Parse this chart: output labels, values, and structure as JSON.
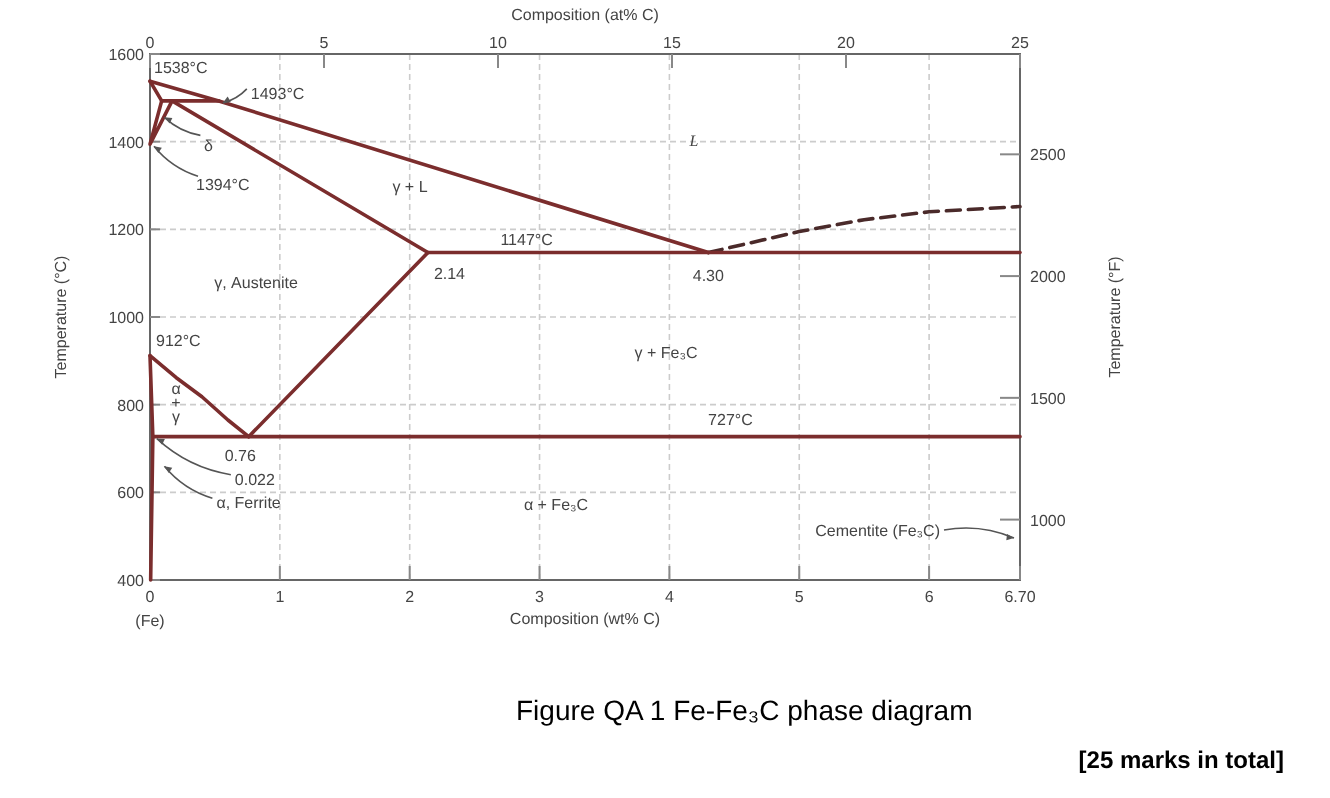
{
  "chart_data": {
    "type": "line",
    "xlabel": "Composition (wt% C)",
    "ylabel": "Temperature (°C)",
    "x2label": "Composition (at% C)",
    "y2label": "Temperature (°F)",
    "xlim": [
      0,
      6.7
    ],
    "xticks": [
      0,
      1,
      2,
      3,
      4,
      5,
      6,
      {
        "value": 6.7,
        "label": "6.70"
      }
    ],
    "ylim": [
      400,
      1600
    ],
    "yticks": [
      400,
      600,
      800,
      1000,
      1200,
      1400,
      1600
    ],
    "x2lim": [
      0,
      25
    ],
    "x2ticks": [
      0,
      5,
      10,
      15,
      20,
      25
    ],
    "y2lim": [
      752,
      2912
    ],
    "y2ticks": [
      1000,
      1500,
      2000,
      2500
    ],
    "grid": true,
    "series": [
      {
        "color": "#7b2d2d",
        "x": [
          0,
          0.53,
          4.3
        ],
        "values": [
          1538,
          1493,
          1147
        ]
      },
      {
        "color": "#4a2a2a",
        "line_style": "dashed",
        "x": [
          4.3,
          5.0,
          5.5,
          6.0,
          6.7
        ],
        "values": [
          1147,
          1195,
          1222,
          1240,
          1252
        ]
      },
      {
        "color": "#7b2d2d",
        "x": [
          2.14,
          6.7
        ],
        "values": [
          1147,
          1147
        ]
      },
      {
        "color": "#7b2d2d",
        "x": [
          0.17,
          2.14
        ],
        "values": [
          1493,
          1147
        ]
      },
      {
        "color": "#7b2d2d",
        "x": [
          0.09,
          0.53
        ],
        "values": [
          1493,
          1493
        ]
      },
      {
        "color": "#7b2d2d",
        "x": [
          0,
          0.09
        ],
        "values": [
          1538,
          1493
        ]
      },
      {
        "color": "#7b2d2d",
        "x": [
          0.09,
          0,
          0.17
        ],
        "values": [
          1493,
          1394,
          1493
        ]
      },
      {
        "color": "#7b2d2d",
        "x": [
          0,
          0.2,
          0.4,
          0.6,
          0.76
        ],
        "values": [
          912,
          862,
          818,
          765,
          727
        ]
      },
      {
        "color": "#7b2d2d",
        "x": [
          0.76,
          2.14
        ],
        "values": [
          727,
          1147
        ]
      },
      {
        "color": "#7b2d2d",
        "x": [
          0.022,
          6.7
        ],
        "values": [
          727,
          727
        ]
      },
      {
        "color": "#7b2d2d",
        "x": [
          0,
          0.022,
          0.005
        ],
        "values": [
          912,
          727,
          400
        ]
      }
    ],
    "annotations": [
      {
        "text": "1538°C",
        "x": 0,
        "y": 1538
      },
      {
        "text": "1493°C",
        "x": 0.53,
        "y": 1493
      },
      {
        "text": "δ",
        "x": 0.08,
        "y": 1460
      },
      {
        "text": "1394°C",
        "x": 0,
        "y": 1394
      },
      "γ + L",
      "L",
      {
        "text": "1147°C",
        "x": 2.9,
        "y": 1147
      },
      {
        "text": "2.14",
        "x": 2.14,
        "y": 1147
      },
      {
        "text": "4.30",
        "x": 4.3,
        "y": 1147
      },
      "γ, Austenite",
      {
        "text": "912°C",
        "x": 0,
        "y": 912
      },
      "γ + Fe₃C",
      {
        "text": "727°C",
        "x": 4.47,
        "y": 727
      },
      "α + γ",
      {
        "text": "0.76",
        "x": 0.76,
        "y": 727
      },
      {
        "text": "0.022",
        "x": 0.022,
        "y": 727
      },
      {
        "text": "α, Ferrite",
        "x": 0.08,
        "y": 664
      },
      "α + Fe₃C",
      "Cementite (Fe₃C)",
      {
        "text": "(Fe)",
        "x": 0,
        "y": 400
      },
      "Figure QA 1 Fe-Fe₃C phase diagram",
      "[25 marks in total]"
    ]
  }
}
